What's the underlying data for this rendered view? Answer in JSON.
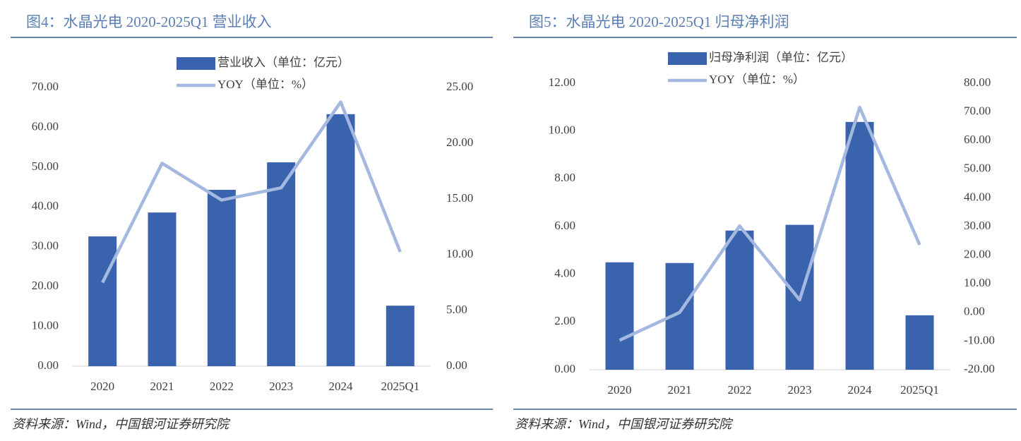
{
  "chart_data": [
    {
      "type": "combo",
      "title": "图4：水晶光电 2020-2025Q1 营业收入",
      "source": "资料来源：Wind，中国银河证券研究院",
      "categories": [
        "2020",
        "2021",
        "2022",
        "2023",
        "2024",
        "2025Q1"
      ],
      "series": [
        {
          "name": "营业收入（单位：亿元）",
          "type": "bar",
          "color": "#3a63ae",
          "values": [
            32.6,
            38.6,
            44.3,
            51.2,
            63.3,
            15.2
          ]
        },
        {
          "name": "YOY（单位：%）",
          "type": "line",
          "axis": "y2",
          "color": "#a4b8e0",
          "values": [
            7.5,
            18.2,
            14.9,
            16.0,
            23.7,
            10.25
          ]
        }
      ],
      "ylim": [
        0,
        70
      ],
      "yticks": [
        {
          "value": 0,
          "label": "0.00"
        },
        {
          "value": 10,
          "label": "10.00"
        },
        {
          "value": 20,
          "label": "20.00"
        },
        {
          "value": 30,
          "label": "30.00"
        },
        {
          "value": 40,
          "label": "40.00"
        },
        {
          "value": 50,
          "label": "50.00"
        },
        {
          "value": 60,
          "label": "60.00"
        },
        {
          "value": 70,
          "label": "70.00"
        }
      ],
      "y2lim": [
        0,
        25
      ],
      "y2ticks": [
        {
          "value": 0,
          "label": "0.00"
        },
        {
          "value": 5,
          "label": "5.00"
        },
        {
          "value": 10,
          "label": "10.00"
        },
        {
          "value": 15,
          "label": "15.00"
        },
        {
          "value": 20,
          "label": "20.00"
        },
        {
          "value": 25,
          "label": "25.00"
        }
      ]
    },
    {
      "type": "combo",
      "title": "图5：水晶光电 2020-2025Q1 归母净利润",
      "source": "资料来源：Wind，中国银河证券研究院",
      "categories": [
        "2020",
        "2021",
        "2022",
        "2023",
        "2024",
        "2025Q1"
      ],
      "series": [
        {
          "name": "归母净利润（单位：亿元）",
          "type": "bar",
          "color": "#3a63ae",
          "values": [
            4.5,
            4.47,
            5.83,
            6.07,
            10.38,
            2.28
          ]
        },
        {
          "name": "YOY（单位：%）",
          "type": "line",
          "axis": "y2",
          "color": "#a4b8e0",
          "values": [
            -9.7,
            0,
            30.2,
            4.4,
            71.6,
            23.6
          ]
        }
      ],
      "ylim": [
        0,
        12
      ],
      "yticks": [
        {
          "value": 0,
          "label": "0.00"
        },
        {
          "value": 2,
          "label": "2.00"
        },
        {
          "value": 4,
          "label": "4.00"
        },
        {
          "value": 6,
          "label": "6.00"
        },
        {
          "value": 8,
          "label": "8.00"
        },
        {
          "value": 10,
          "label": "10.00"
        },
        {
          "value": 12,
          "label": "12.00"
        }
      ],
      "y2lim": [
        -20,
        80
      ],
      "y2ticks": [
        {
          "value": -20,
          "label": "-20.00"
        },
        {
          "value": -10,
          "label": "-10.00"
        },
        {
          "value": 0,
          "label": "0.00"
        },
        {
          "value": 10,
          "label": "10.00"
        },
        {
          "value": 20,
          "label": "20.00"
        },
        {
          "value": 30,
          "label": "30.00"
        },
        {
          "value": 40,
          "label": "40.00"
        },
        {
          "value": 50,
          "label": "50.00"
        },
        {
          "value": 60,
          "label": "60.00"
        },
        {
          "value": 70,
          "label": "70.00"
        },
        {
          "value": 80,
          "label": "80.00"
        }
      ]
    }
  ]
}
